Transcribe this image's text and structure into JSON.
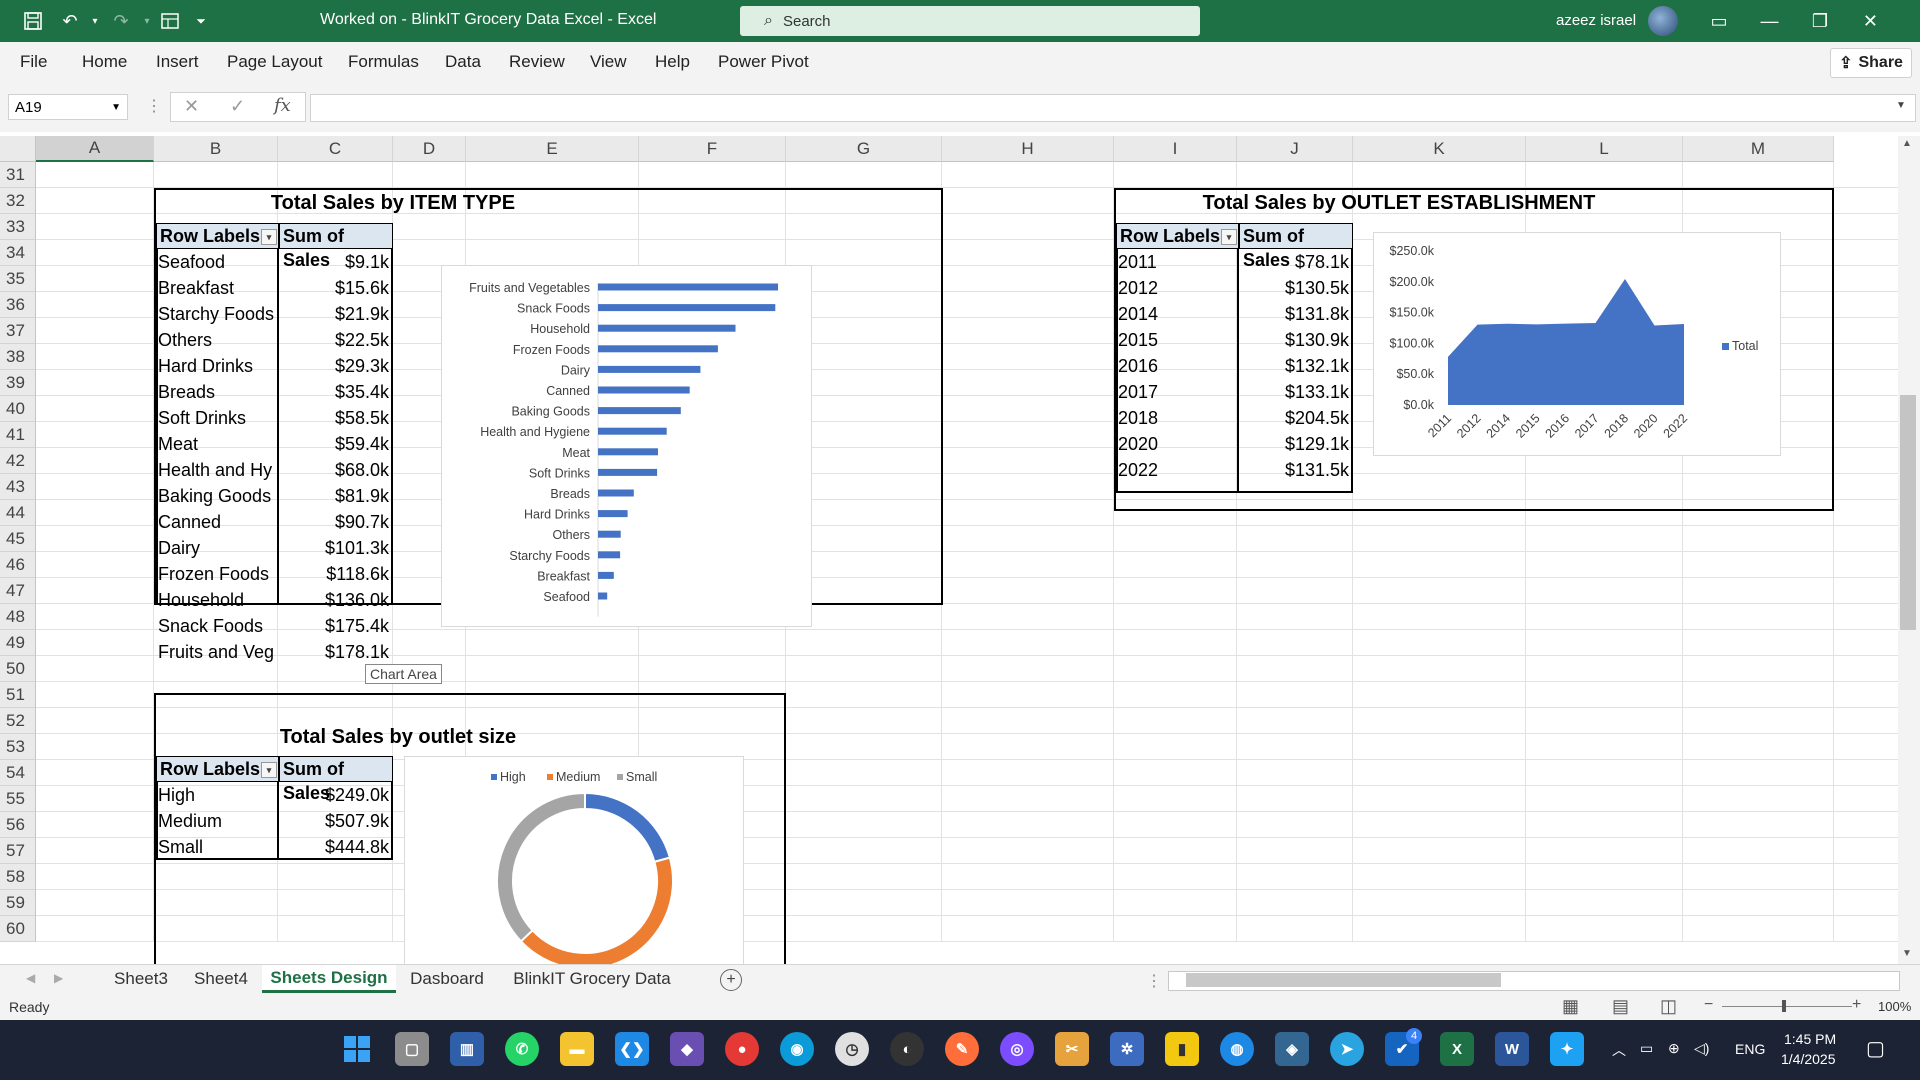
{
  "titlebar": {
    "title": "Worked on - BlinkIT Grocery Data Excel  -  Excel",
    "search_placeholder": "Search",
    "user_name": "azeez israel"
  },
  "menu": {
    "items": [
      "File",
      "Home",
      "Insert",
      "Page Layout",
      "Formulas",
      "Data",
      "Review",
      "View",
      "Help",
      "Power Pivot"
    ],
    "share_label": "Share"
  },
  "formula_bar": {
    "name_box": "A19",
    "fx_label": "fx",
    "formula": ""
  },
  "columns": [
    "A",
    "B",
    "C",
    "D",
    "E",
    "F",
    "G",
    "H",
    "I",
    "J",
    "K",
    "L",
    "M"
  ],
  "rows": [
    "31",
    "32",
    "33",
    "34",
    "35",
    "36",
    "37",
    "38",
    "39",
    "40",
    "41",
    "42",
    "43",
    "44",
    "45",
    "46",
    "47",
    "48",
    "49",
    "50",
    "51",
    "52",
    "53",
    "54",
    "55",
    "56",
    "57",
    "58",
    "59",
    "60"
  ],
  "pivot_item_type": {
    "title": "Total Sales by ITEM TYPE",
    "header_labels": "Row Labels",
    "header_sum": "Sum of Sales",
    "rows": [
      {
        "label": "Seafood",
        "value": "$9.1k"
      },
      {
        "label": "Breakfast",
        "value": "$15.6k"
      },
      {
        "label": "Starchy Foods",
        "value": "$21.9k"
      },
      {
        "label": "Others",
        "value": "$22.5k"
      },
      {
        "label": "Hard Drinks",
        "value": "$29.3k"
      },
      {
        "label": "Breads",
        "value": "$35.4k"
      },
      {
        "label": "Soft Drinks",
        "value": "$58.5k"
      },
      {
        "label": "Meat",
        "value": "$59.4k"
      },
      {
        "label": "Health and Hy",
        "value": "$68.0k"
      },
      {
        "label": "Baking Goods",
        "value": "$81.9k"
      },
      {
        "label": "Canned",
        "value": "$90.7k"
      },
      {
        "label": "Dairy",
        "value": "$101.3k"
      },
      {
        "label": "Frozen Foods",
        "value": "$118.6k"
      },
      {
        "label": "Household",
        "value": "$136.0k"
      },
      {
        "label": "Snack Foods",
        "value": "$175.4k"
      },
      {
        "label": "Fruits and Veg",
        "value": "$178.1k"
      }
    ],
    "tooltip": "Chart Area"
  },
  "pivot_outlet_est": {
    "title": "Total Sales by OUTLET ESTABLISHMENT",
    "header_labels": "Row Labels",
    "header_sum": "Sum of Sales",
    "rows": [
      {
        "label": "2011",
        "value": "$78.1k"
      },
      {
        "label": "2012",
        "value": "$130.5k"
      },
      {
        "label": "2014",
        "value": "$131.8k"
      },
      {
        "label": "2015",
        "value": "$130.9k"
      },
      {
        "label": "2016",
        "value": "$132.1k"
      },
      {
        "label": "2017",
        "value": "$133.1k"
      },
      {
        "label": "2018",
        "value": "$204.5k"
      },
      {
        "label": "2020",
        "value": "$129.1k"
      },
      {
        "label": "2022",
        "value": "$131.5k"
      }
    ]
  },
  "pivot_outlet_size": {
    "title": "Total Sales by outlet size",
    "header_labels": "Row Labels",
    "header_sum": "Sum of Sales",
    "rows": [
      {
        "label": "High",
        "value": "$249.0k"
      },
      {
        "label": "Medium",
        "value": "$507.9k"
      },
      {
        "label": "Small",
        "value": "$444.8k"
      }
    ]
  },
  "chart_data": [
    {
      "type": "bar",
      "orientation": "horizontal",
      "categories": [
        "Fruits and Vegetables",
        "Snack Foods",
        "Household",
        "Frozen Foods",
        "Dairy",
        "Canned",
        "Baking Goods",
        "Health and Hygiene",
        "Meat",
        "Soft Drinks",
        "Breads",
        "Hard Drinks",
        "Others",
        "Starchy Foods",
        "Breakfast",
        "Seafood"
      ],
      "values": [
        178.1,
        175.4,
        136.0,
        118.6,
        101.3,
        90.7,
        81.9,
        68.0,
        59.4,
        58.5,
        35.4,
        29.3,
        22.5,
        21.9,
        15.6,
        9.1
      ],
      "color": "#4472c4",
      "grid": false
    },
    {
      "type": "area",
      "categories": [
        "2011",
        "2012",
        "2014",
        "2015",
        "2016",
        "2017",
        "2018",
        "2020",
        "2022"
      ],
      "values": [
        78.1,
        130.5,
        131.8,
        130.9,
        132.1,
        133.1,
        204.5,
        129.1,
        131.5
      ],
      "y_ticks": [
        "$0.0k",
        "$50.0k",
        "$100.0k",
        "$150.0k",
        "$200.0k",
        "$250.0k"
      ],
      "ylim": [
        0,
        250
      ],
      "legend": "Total",
      "legend_position": "right",
      "color": "#4472c4"
    },
    {
      "type": "pie",
      "variant": "donut",
      "categories": [
        "High",
        "Medium",
        "Small"
      ],
      "values": [
        249.0,
        507.9,
        444.8
      ],
      "colors": [
        "#4472c4",
        "#ed7d31",
        "#a5a5a5"
      ],
      "legend_position": "top"
    }
  ],
  "sheet_tabs": [
    "Sheet3",
    "Sheet4",
    "Sheets Design",
    "Dasboard",
    "BlinkIT Grocery Data"
  ],
  "active_tab": "Sheets Design",
  "status": {
    "ready": "Ready",
    "zoom": "100%"
  },
  "taskbar": {
    "time": "1:45 PM",
    "date": "1/4/2025",
    "lang": "ENG",
    "badge": "4"
  }
}
